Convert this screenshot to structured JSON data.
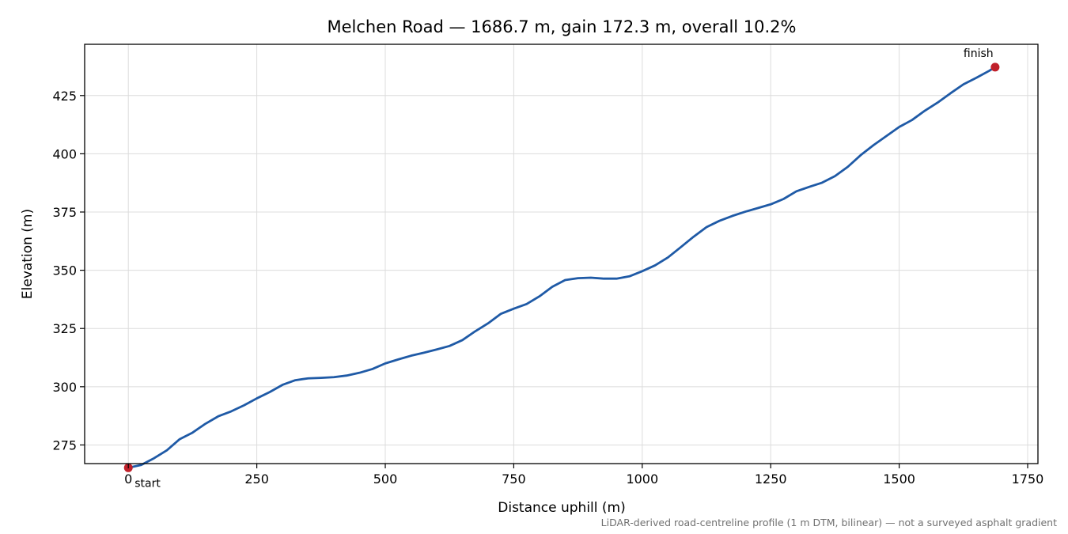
{
  "chart_data": {
    "type": "line",
    "title": "Melchen Road — 1686.7 m, gain 172.3 m, overall 10.2%",
    "xlabel": "Distance uphill (m)",
    "ylabel": "Elevation (m)",
    "xlim": [
      -85,
      1770
    ],
    "ylim": [
      267,
      447
    ],
    "xticks": [
      0,
      250,
      500,
      750,
      1000,
      1250,
      1500,
      1750
    ],
    "yticks": [
      275,
      300,
      325,
      350,
      375,
      400,
      425
    ],
    "grid": true,
    "line_color": "#1f5aa6",
    "marker_color": "#c0202a",
    "series": [
      {
        "x": [
          0,
          25,
          50,
          75,
          100,
          125,
          150,
          175,
          200,
          225,
          250,
          275,
          300,
          325,
          350,
          375,
          400,
          425,
          450,
          475,
          500,
          525,
          550,
          575,
          600,
          625,
          650,
          675,
          700,
          725,
          750,
          775,
          800,
          825,
          850,
          875,
          900,
          925,
          950,
          975,
          1000,
          1025,
          1050,
          1075,
          1100,
          1125,
          1150,
          1175,
          1200,
          1225,
          1250,
          1275,
          1300,
          1325,
          1350,
          1375,
          1400,
          1425,
          1450,
          1475,
          1500,
          1525,
          1550,
          1575,
          1600,
          1625,
          1650,
          1675,
          1686.7
        ],
        "y": [
          265.2,
          266.4,
          269.3,
          272.7,
          277.5,
          280.3,
          284.1,
          287.3,
          289.4,
          292.0,
          295.0,
          297.7,
          300.8,
          302.8,
          303.6,
          303.8,
          304.1,
          304.8,
          306.0,
          307.6,
          310.0,
          311.7,
          313.3,
          314.6,
          316.0,
          317.5,
          320.0,
          323.8,
          327.2,
          331.3,
          333.5,
          335.5,
          338.8,
          342.9,
          345.8,
          346.6,
          346.8,
          346.4,
          346.4,
          347.4,
          349.6,
          352.1,
          355.5,
          359.9,
          364.4,
          368.5,
          371.2,
          373.3,
          375.1,
          376.7,
          378.3,
          380.6,
          383.9,
          385.8,
          387.6,
          390.4,
          394.4,
          399.4,
          403.7,
          407.6,
          411.5,
          414.5,
          418.5,
          422.0,
          426.0,
          429.8,
          432.6,
          435.6,
          437.2
        ]
      }
    ],
    "annotations": [
      {
        "text": "start",
        "x": 0,
        "y": 265.2
      },
      {
        "text": "finish",
        "x": 1686.7,
        "y": 437.2
      }
    ],
    "caption": "LiDAR-derived road-centreline profile (1 m DTM, bilinear) — not a surveyed asphalt gradient"
  }
}
